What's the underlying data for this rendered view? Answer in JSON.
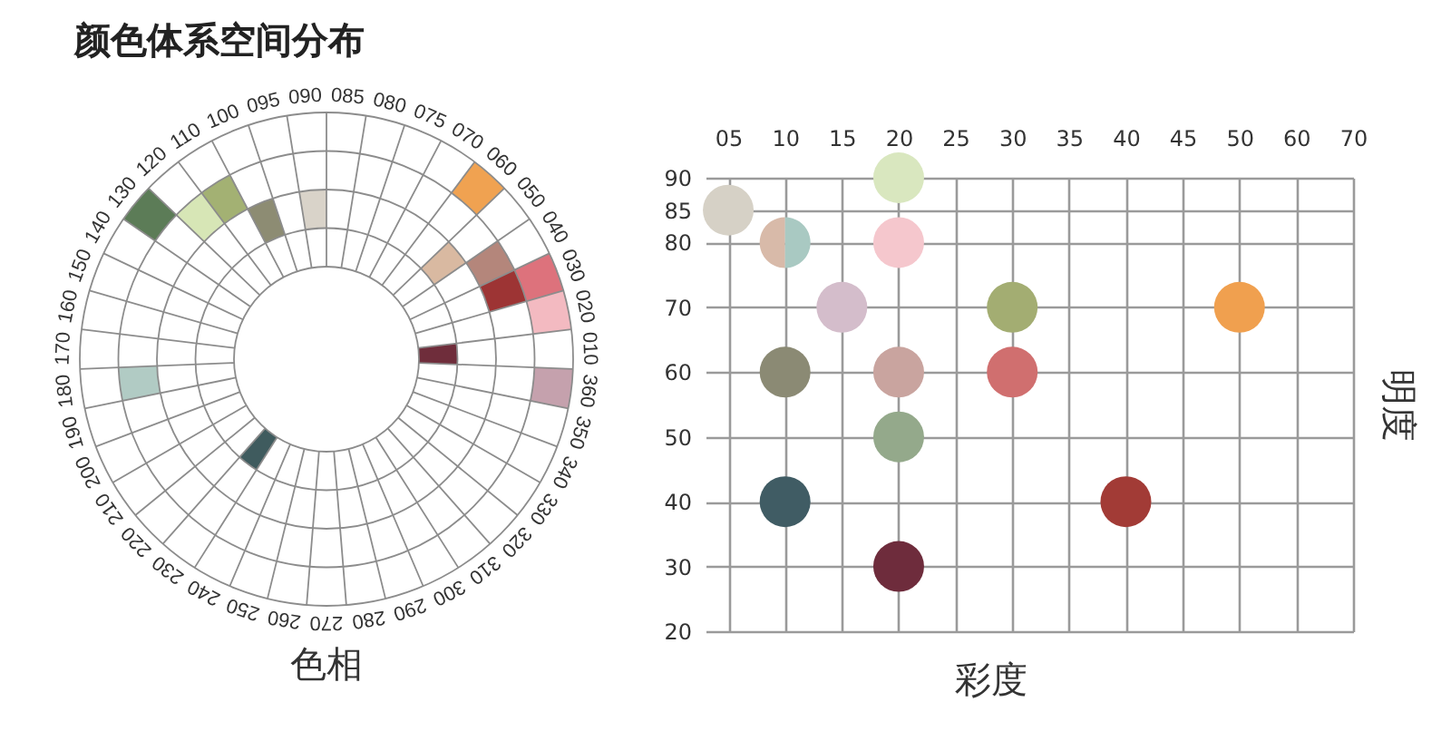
{
  "chart_data": [
    {
      "type": "other",
      "title": "颜色体系空间分布",
      "xlabel": "色相",
      "categories": [
        "085",
        "080",
        "075",
        "070",
        "060",
        "050",
        "040",
        "030",
        "020",
        "010",
        "360",
        "350",
        "340",
        "330",
        "320",
        "310",
        "300",
        "290",
        "280",
        "270",
        "260",
        "250",
        "240",
        "230",
        "220",
        "210",
        "200",
        "190",
        "180",
        "170",
        "160",
        "150",
        "140",
        "130",
        "120",
        "110",
        "100",
        "095",
        "090"
      ]
    },
    {
      "type": "scatter",
      "xlabel": "彩度",
      "ylabel": "明度",
      "categories": [
        "05",
        "10",
        "15",
        "20",
        "25",
        "30",
        "35",
        "40",
        "45",
        "50",
        "60",
        "70"
      ],
      "ylim": [
        20,
        90
      ],
      "yticks": [
        20,
        30,
        40,
        50,
        60,
        70,
        80,
        85,
        90
      ],
      "grid": true,
      "marker": "circle",
      "series": [
        {
          "x": [
            "05",
            "20",
            "10",
            "10",
            "20",
            "15",
            "30",
            "50",
            "10",
            "20",
            "30",
            "20",
            "10",
            "40",
            "20"
          ],
          "values": [
            85,
            90,
            80,
            80,
            80,
            70,
            70,
            70,
            60,
            60,
            60,
            50,
            40,
            40,
            30
          ],
          "colors": [
            "#d6d1c6",
            "#d9e7bf",
            "#d8baa9",
            "#a9c9c2",
            "#f5c7cd",
            "#d4bdcb",
            "#a3ad72",
            "#f0a04f",
            "#8b8a74",
            "#c9a49f",
            "#d06f6f",
            "#94a98b",
            "#405c64",
            "#a23b36",
            "#6e2c3c"
          ]
        }
      ]
    }
  ]
}
